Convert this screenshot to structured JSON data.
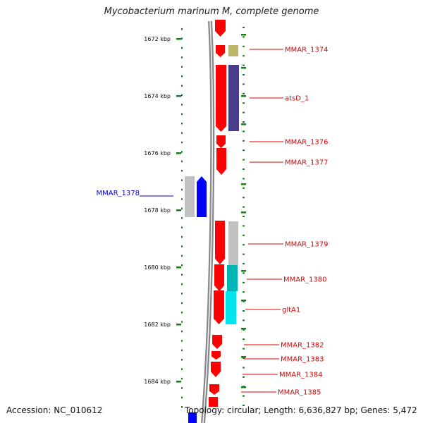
{
  "title": "Mycobacterium marinum M, complete genome",
  "footer": {
    "accession": "Accession: NC_010612",
    "summary": "Topology: circular; Length: 6,636,827 bp; Genes: 5,472"
  },
  "ruler": {
    "ticks": [
      "1672 kbp",
      "1674 kbp",
      "1676 kbp",
      "1678 kbp",
      "1680 kbp",
      "1682 kbp",
      "1684 kbp"
    ]
  },
  "colors": {
    "cds": "#ff0000",
    "highlight": "#0000ff",
    "label_red": "#dd0000",
    "label_blue": "#0000cc",
    "backbone": "#888888",
    "tick": "#1a7a1a",
    "khaki": "#bdb76b",
    "slate": "#483d8b",
    "gray": "#c0c0c0",
    "cyan": "#00e5ee",
    "teal": "#00b5b5"
  },
  "gene_labels": [
    {
      "text": "MMAR_1374",
      "color": "#dd0000"
    },
    {
      "text": "atsD_1",
      "color": "#dd0000"
    },
    {
      "text": "MMAR_1376",
      "color": "#dd0000"
    },
    {
      "text": "MMAR_1377",
      "color": "#dd0000"
    },
    {
      "text": "MMAR_1378",
      "color": "#0000cc"
    },
    {
      "text": "MMAR_1379",
      "color": "#dd0000"
    },
    {
      "text": "MMAR_1380",
      "color": "#dd0000"
    },
    {
      "text": "gltA1",
      "color": "#dd0000"
    },
    {
      "text": "MMAR_1382",
      "color": "#dd0000"
    },
    {
      "text": "MMAR_1383",
      "color": "#dd0000"
    },
    {
      "text": "MMAR_1384",
      "color": "#dd0000"
    },
    {
      "text": "MMAR_1385",
      "color": "#dd0000"
    }
  ]
}
